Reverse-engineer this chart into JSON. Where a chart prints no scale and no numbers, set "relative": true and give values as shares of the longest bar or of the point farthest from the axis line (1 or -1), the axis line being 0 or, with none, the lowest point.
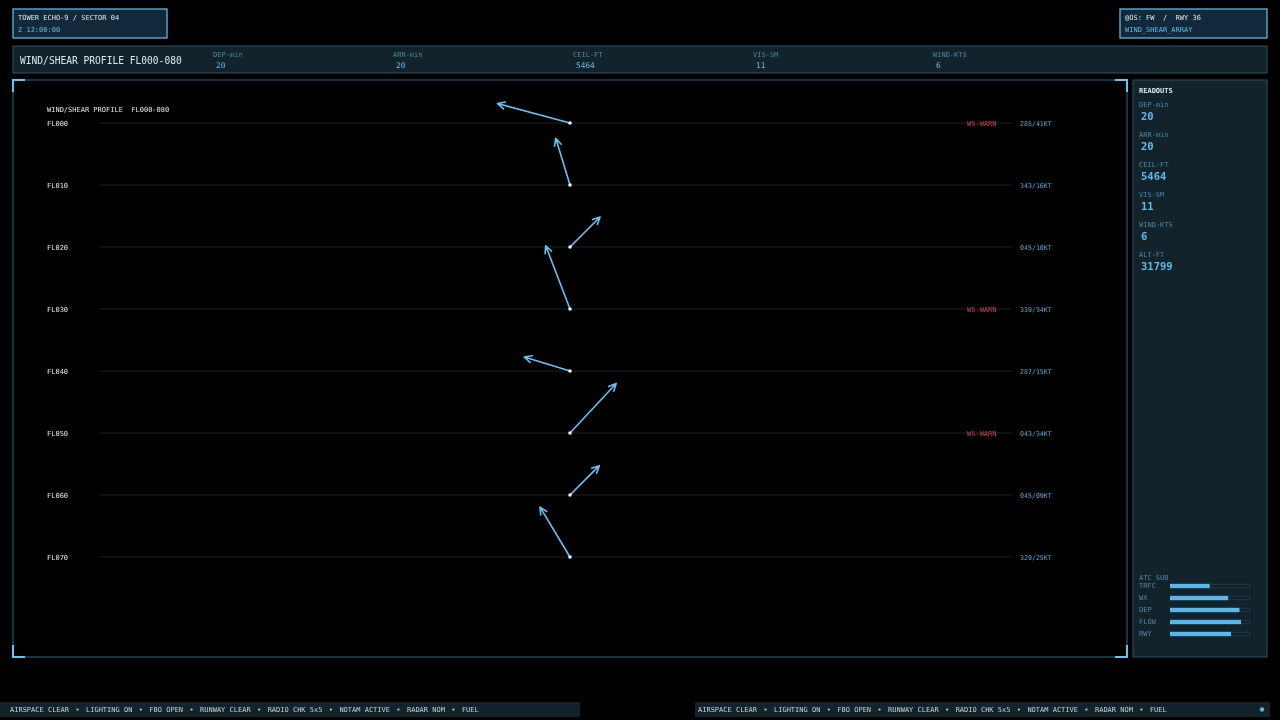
{
  "chart_data": [
    {
      "type": "other",
      "annotations": [
        "TOWER ECHO-9 / SECTOR 04",
        "Z 12:00:00",
        "@OS: FW  /  RWY 36",
        "WIND_SHEAR_ARRAY"
      ]
    },
    {
      "type": "other",
      "title": "WIND/SHEAR PROFILE FL000-080",
      "categories": [
        "DEP-min",
        "ARR-min",
        "CEIL-FT",
        "VIS-SM",
        "WIND-KTS"
      ],
      "values": [
        20,
        20,
        5464,
        11,
        6
      ],
      "data_labels": true
    },
    {
      "type": "other",
      "title": "WIND/SHEAR PROFILE  FL000-080",
      "categories": [
        "FL000",
        "FL010",
        "FL020",
        "FL030",
        "FL040",
        "FL050",
        "FL060",
        "FL070"
      ],
      "series": [
        {
          "color": "#6cc0f0",
          "values": [
            285,
            343,
            45,
            339,
            287,
            43,
            45,
            329
          ],
          "value_labels": [
            "285/",
            "343/",
            "045/",
            "339/",
            "287/",
            "043/",
            "045/",
            "329/"
          ]
        },
        {
          "values": [
            41,
            16,
            10,
            34,
            15,
            34,
            9,
            25
          ],
          "value_labels": [
            "41KT",
            "16KT",
            "10KT",
            "34KT",
            "15KT",
            "34KT",
            "09KT",
            "25KT"
          ]
        }
      ],
      "annotations": [
        {
          "text": "WS-WARN",
          "y": "FL000"
        },
        {
          "text": "WS-WARN",
          "y": "FL030"
        },
        {
          "text": "WS-WARN",
          "y": "FL050"
        }
      ]
    },
    {
      "type": "other",
      "title": "READOUTS",
      "categories": [
        "DEP-min",
        "ARR-min",
        "CEIL-FT",
        "VIS-SM",
        "WIND-KTS",
        "ALT-FT"
      ],
      "values": [
        20,
        20,
        5464,
        11,
        6,
        31799
      ],
      "data_labels": true
    },
    {
      "type": "bar",
      "orientation": "horizontal",
      "relative": true,
      "title": "ATC SUB",
      "categories": [
        "TRFC",
        "WX",
        "DEP",
        "FLOW",
        "RWY"
      ],
      "values": [
        0.56,
        0.82,
        0.98,
        1,
        0.86
      ],
      "color": "#5cb8ea"
    },
    {
      "type": "other",
      "annotations": [
        "AIRSPACE CLEAR",
        "LIGHTING ON",
        "FBO OPEN",
        "RUNWAY CLEAR",
        "RADIO CHK 5x5",
        "NOTAM ACTIVE",
        "RADAR NOM",
        "FUEL"
      ]
    },
    {
      "type": "other",
      "annotations": [
        "AIRSPACE CLEAR",
        "LIGHTING ON",
        "FBO OPEN",
        "RUNWAY CLEAR",
        "RADIO CHK 5x5",
        "NOTAM ACTIVE",
        "RADAR NOM",
        "FUEL"
      ]
    }
  ]
}
